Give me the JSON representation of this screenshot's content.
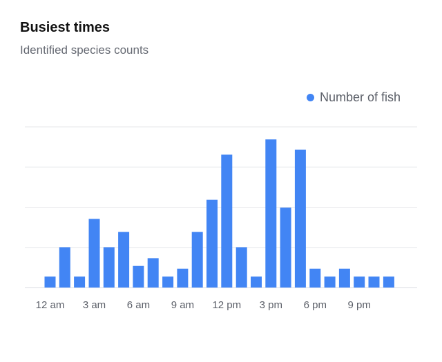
{
  "card": {
    "title": "Busiest times",
    "subtitle": "Identified species counts"
  },
  "colors": {
    "bar": "#4285f4",
    "grid": "#e6e7ea",
    "axis": "#d9dbe0"
  },
  "chart_data": {
    "type": "bar",
    "title": "Busiest times",
    "subtitle": "Identified species counts",
    "xlabel": "",
    "ylabel": "",
    "legend": "top-right",
    "grid": true,
    "ylim": [
      0,
      4.1
    ],
    "categories": [
      "12 am",
      "1 am",
      "2 am",
      "3 am",
      "4 am",
      "5 am",
      "6 am",
      "7 am",
      "8 am",
      "9 am",
      "10 am",
      "11 am",
      "12 pm",
      "1 pm",
      "2 pm",
      "3 pm",
      "4 pm",
      "5 pm",
      "6 pm",
      "7 pm",
      "8 pm",
      "9 pm",
      "10 pm",
      "11 pm"
    ],
    "tick_labels": [
      {
        "index": 0,
        "label": "12 am"
      },
      {
        "index": 3,
        "label": "3 am"
      },
      {
        "index": 6,
        "label": "6 am"
      },
      {
        "index": 9,
        "label": "9 am"
      },
      {
        "index": 12,
        "label": "12 pm"
      },
      {
        "index": 15,
        "label": "3 pm"
      },
      {
        "index": 18,
        "label": "6 pm"
      },
      {
        "index": 21,
        "label": "9 pm"
      }
    ],
    "series": [
      {
        "name": "Number of fish",
        "values": [
          0.28,
          1.03,
          0.28,
          1.75,
          1.03,
          1.42,
          0.55,
          0.75,
          0.28,
          0.48,
          1.42,
          2.24,
          3.39,
          1.03,
          0.28,
          3.78,
          2.04,
          3.52,
          0.48,
          0.28,
          0.48,
          0.28,
          0.28,
          0.28
        ]
      }
    ]
  }
}
